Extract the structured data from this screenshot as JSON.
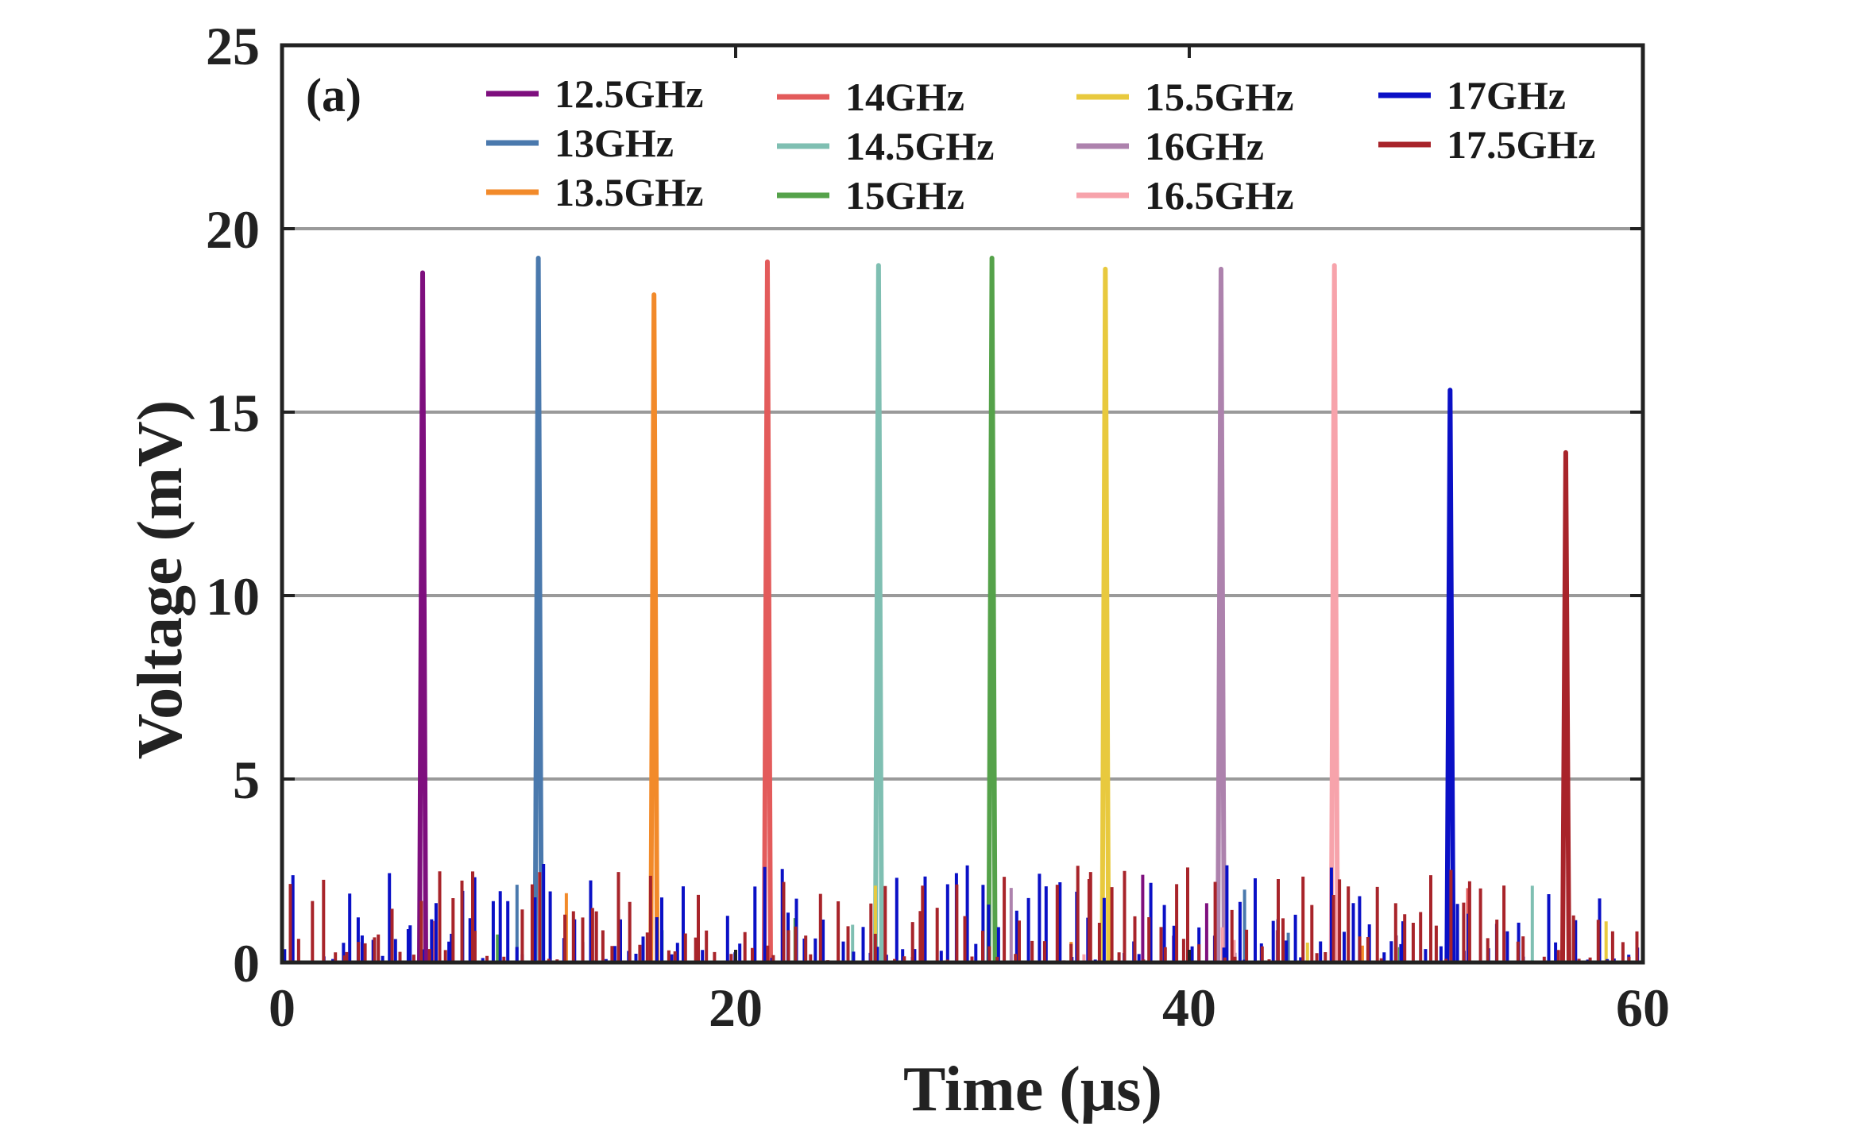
{
  "chart_data": {
    "type": "line",
    "panel_label": "(a)",
    "xlabel": "Time (μs)",
    "ylabel": "Voltage (mV)",
    "xlim": [
      0,
      60
    ],
    "ylim": [
      0,
      25
    ],
    "xticks": [
      0,
      20,
      40,
      60
    ],
    "yticks": [
      0,
      5,
      10,
      15,
      20,
      25
    ],
    "grid": "horizontal",
    "legend_position": "top",
    "series": [
      {
        "name": "12.5GHz",
        "color": "#7e0f7e",
        "peak_time": 6.2,
        "peak_value": 18.8
      },
      {
        "name": "13GHz",
        "color": "#4a79ad",
        "peak_time": 11.3,
        "peak_value": 19.2
      },
      {
        "name": "13.5GHz",
        "color": "#f28a2a",
        "peak_time": 16.4,
        "peak_value": 18.2
      },
      {
        "name": "14GHz",
        "color": "#e35b5b",
        "peak_time": 21.4,
        "peak_value": 19.1
      },
      {
        "name": "14.5GHz",
        "color": "#7fbfb2",
        "peak_time": 26.3,
        "peak_value": 19.0
      },
      {
        "name": "15GHz",
        "color": "#55a24a",
        "peak_time": 31.3,
        "peak_value": 19.2
      },
      {
        "name": "15.5GHz",
        "color": "#e8c93e",
        "peak_time": 36.3,
        "peak_value": 18.9
      },
      {
        "name": "16GHz",
        "color": "#ad82ad",
        "peak_time": 41.4,
        "peak_value": 18.9
      },
      {
        "name": "16.5GHz",
        "color": "#f7a3ab",
        "peak_time": 46.4,
        "peak_value": 19.0
      },
      {
        "name": "17GHz",
        "color": "#0a10c6",
        "peak_time": 51.5,
        "peak_value": 15.6
      },
      {
        "name": "17.5GHz",
        "color": "#a8242a",
        "peak_time": 56.6,
        "peak_value": 13.9
      }
    ]
  }
}
